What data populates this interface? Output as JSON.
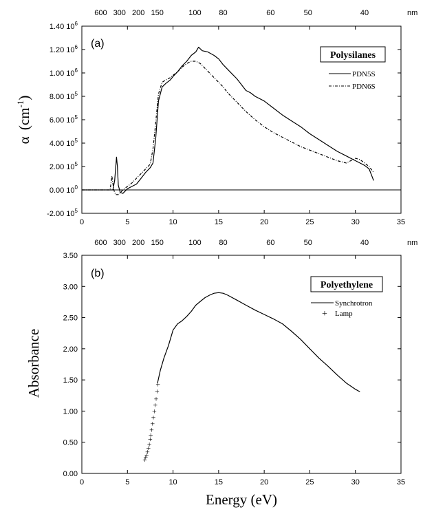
{
  "chart_data": [
    {
      "type": "line",
      "panel_label": "(a)",
      "ylabel_symbol": "α",
      "ylabel_unit": "(cm",
      "ylabel_exp": "-1",
      "ylabel_close": ")",
      "xlim": [
        0,
        35
      ],
      "ylim": [
        -200000,
        1400000
      ],
      "x_ticks": [
        "0",
        "5",
        "10",
        "15",
        "20",
        "25",
        "30",
        "35"
      ],
      "y_ticks": [
        {
          "mant": "1.40 10",
          "exp": "6"
        },
        {
          "mant": "1.20 10",
          "exp": "6"
        },
        {
          "mant": "1.00 10",
          "exp": "6"
        },
        {
          "mant": "8.00 10",
          "exp": "5"
        },
        {
          "mant": "6.00 10",
          "exp": "5"
        },
        {
          "mant": "4.00 10",
          "exp": "5"
        },
        {
          "mant": "2.00 10",
          "exp": "5"
        },
        {
          "mant": "0.00 10",
          "exp": "0"
        },
        {
          "mant": "-2.00 10",
          "exp": "5"
        }
      ],
      "top_axis_unit": "nm",
      "top_axis_ticks": [
        "600",
        "300",
        "200",
        "150",
        "100",
        "80",
        "60",
        "50",
        "40"
      ],
      "legend_title": "Polysilanes",
      "legend_position": "top-right",
      "series": [
        {
          "name": "PDN5S",
          "style": "solid",
          "x": [
            0,
            3.4,
            3.6,
            3.8,
            3.9,
            4.0,
            4.2,
            4.5,
            5,
            5.5,
            6,
            6.5,
            7,
            7.5,
            7.8,
            8.1,
            8.4,
            8.8,
            9.2,
            9.7,
            10,
            10.5,
            11,
            11.5,
            12,
            12.5,
            12.8,
            13.2,
            13.8,
            14.5,
            15,
            15.5,
            16,
            16.5,
            17,
            17.5,
            18,
            18.5,
            19,
            20,
            21,
            22,
            23,
            24,
            25,
            26,
            27,
            28,
            29,
            30,
            30.5,
            31,
            31.5,
            31.8,
            32
          ],
          "y": [
            0,
            0,
            80000,
            280000,
            200000,
            40000,
            -20000,
            -30000,
            10000,
            30000,
            50000,
            100000,
            150000,
            190000,
            230000,
            440000,
            760000,
            880000,
            910000,
            940000,
            970000,
            1010000,
            1060000,
            1100000,
            1150000,
            1180000,
            1220000,
            1190000,
            1180000,
            1150000,
            1120000,
            1070000,
            1030000,
            990000,
            950000,
            900000,
            850000,
            830000,
            800000,
            760000,
            700000,
            640000,
            590000,
            540000,
            480000,
            430000,
            380000,
            330000,
            290000,
            250000,
            230000,
            210000,
            180000,
            120000,
            80000
          ]
        },
        {
          "name": "PDN6S",
          "style": "dash-dot",
          "x": [
            0,
            3.1,
            3.3,
            3.5,
            3.7,
            4.0,
            4.5,
            5,
            5.5,
            6,
            6.5,
            7,
            7.5,
            7.8,
            8.0,
            8.4,
            8.8,
            9.2,
            9.7,
            10,
            10.5,
            11,
            11.5,
            12,
            12.5,
            13,
            13.5,
            14,
            14.5,
            15,
            15.5,
            16,
            16.5,
            17,
            17.5,
            18,
            19,
            20,
            21,
            22,
            23,
            24,
            25,
            26,
            27,
            28,
            29,
            30,
            30.5,
            31,
            31.5,
            32
          ],
          "y": [
            0,
            0,
            120000,
            0,
            -40000,
            -40000,
            0,
            30000,
            60000,
            100000,
            140000,
            180000,
            220000,
            350000,
            500000,
            820000,
            920000,
            940000,
            960000,
            980000,
            1010000,
            1050000,
            1080000,
            1100000,
            1100000,
            1080000,
            1040000,
            1000000,
            960000,
            920000,
            880000,
            830000,
            790000,
            750000,
            710000,
            670000,
            600000,
            540000,
            490000,
            450000,
            410000,
            370000,
            340000,
            310000,
            280000,
            250000,
            230000,
            270000,
            260000,
            230000,
            200000,
            150000
          ]
        }
      ],
      "baseline": {
        "x": [
          0,
          35
        ],
        "y": [
          0,
          0
        ]
      }
    },
    {
      "type": "line",
      "panel_label": "(b)",
      "ylabel": "Absorbance",
      "xlabel": "Energy (eV)",
      "xlim": [
        0,
        35
      ],
      "ylim": [
        0,
        3.5
      ],
      "x_ticks": [
        "0",
        "5",
        "10",
        "15",
        "20",
        "25",
        "30",
        "35"
      ],
      "y_ticks": [
        "3.50",
        "3.00",
        "2.50",
        "2.00",
        "1.50",
        "1.00",
        "0.50",
        "0.00"
      ],
      "top_axis_unit": "nm",
      "top_axis_ticks": [
        "600",
        "300",
        "200",
        "150",
        "100",
        "80",
        "60",
        "50",
        "40"
      ],
      "legend_title": "Polyethylene",
      "legend_position": "top-right",
      "series": [
        {
          "name": "Synchrotron",
          "style": "solid",
          "x": [
            8.3,
            8.6,
            9.0,
            9.5,
            10.0,
            10.5,
            11.0,
            11.5,
            12.0,
            12.5,
            13,
            13.5,
            14,
            14.5,
            15,
            15.5,
            16,
            17,
            18,
            19,
            20,
            21,
            22,
            23,
            24,
            25,
            26,
            27,
            28,
            29,
            30,
            30.5
          ],
          "y": [
            1.45,
            1.65,
            1.85,
            2.05,
            2.3,
            2.4,
            2.45,
            2.52,
            2.6,
            2.7,
            2.76,
            2.82,
            2.86,
            2.89,
            2.9,
            2.89,
            2.86,
            2.78,
            2.7,
            2.62,
            2.55,
            2.48,
            2.4,
            2.28,
            2.15,
            2.0,
            1.85,
            1.72,
            1.58,
            1.45,
            1.35,
            1.31
          ]
        },
        {
          "name": "Lamp",
          "style": "plus-markers",
          "x": [
            6.9,
            7.0,
            7.1,
            7.2,
            7.3,
            7.4,
            7.5,
            7.55,
            7.65,
            7.75,
            7.85,
            7.95,
            8.05,
            8.15,
            8.25,
            8.35
          ],
          "y": [
            0.22,
            0.26,
            0.3,
            0.35,
            0.41,
            0.47,
            0.55,
            0.62,
            0.7,
            0.8,
            0.9,
            1.0,
            1.1,
            1.2,
            1.32,
            1.43
          ]
        }
      ]
    }
  ]
}
